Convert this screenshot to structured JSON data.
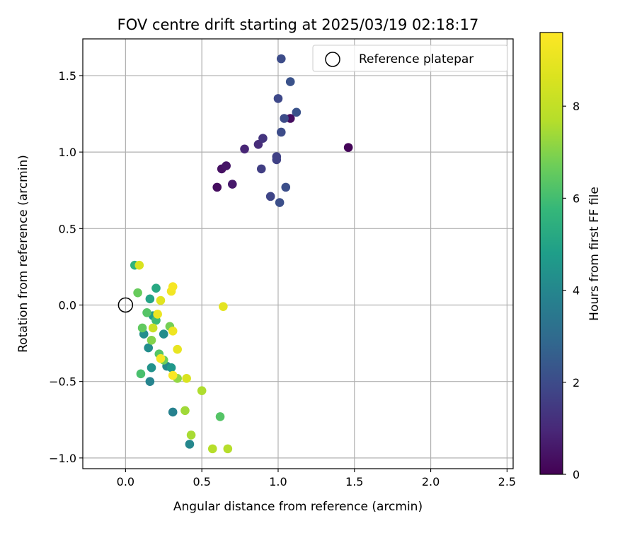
{
  "chart_data": {
    "type": "scatter",
    "title": "FOV centre drift starting at 2025/03/19 02:18:17",
    "xlabel": "Angular distance from reference (arcmin)",
    "ylabel": "Rotation from reference (arcmin)",
    "xlim": [
      -0.28,
      2.54
    ],
    "ylim": [
      -1.07,
      1.74
    ],
    "xticks": [
      0.0,
      0.5,
      1.0,
      1.5,
      2.0,
      2.5
    ],
    "xtick_labels": [
      "0.0",
      "0.5",
      "1.0",
      "1.5",
      "2.0",
      "2.5"
    ],
    "yticks": [
      -1.0,
      -0.5,
      0.0,
      0.5,
      1.0,
      1.5
    ],
    "ytick_labels": [
      "−1.0",
      "−0.5",
      "0.0",
      "0.5",
      "1.0",
      "1.5"
    ],
    "grid": true,
    "colormap": "viridis",
    "colorbar": {
      "label": "Hours from first FF file",
      "range": [
        0,
        9.6
      ],
      "ticks": [
        0,
        2,
        4,
        6,
        8
      ],
      "tick_labels": [
        "0",
        "2",
        "4",
        "6",
        "8"
      ]
    },
    "legend": {
      "position": "top-right",
      "entries": [
        {
          "label": "Reference platepar",
          "marker": "open-circle"
        }
      ]
    },
    "reference_point": {
      "x": 0.0,
      "y": 0.0
    },
    "points": [
      {
        "x": 1.46,
        "y": 1.03,
        "c": 0.1
      },
      {
        "x": 1.08,
        "y": 1.22,
        "c": 0.3
      },
      {
        "x": 0.6,
        "y": 0.77,
        "c": 0.3
      },
      {
        "x": 0.63,
        "y": 0.89,
        "c": 0.4
      },
      {
        "x": 0.66,
        "y": 0.91,
        "c": 0.5
      },
      {
        "x": 0.7,
        "y": 0.79,
        "c": 0.6
      },
      {
        "x": 0.78,
        "y": 1.02,
        "c": 0.9
      },
      {
        "x": 0.87,
        "y": 1.05,
        "c": 1.1
      },
      {
        "x": 0.9,
        "y": 1.09,
        "c": 1.3
      },
      {
        "x": 0.89,
        "y": 0.89,
        "c": 1.6
      },
      {
        "x": 0.95,
        "y": 0.71,
        "c": 1.8
      },
      {
        "x": 0.99,
        "y": 0.97,
        "c": 1.7
      },
      {
        "x": 0.99,
        "y": 0.95,
        "c": 1.7
      },
      {
        "x": 1.0,
        "y": 1.35,
        "c": 1.9
      },
      {
        "x": 1.02,
        "y": 1.61,
        "c": 2.0
      },
      {
        "x": 1.02,
        "y": 1.13,
        "c": 2.0
      },
      {
        "x": 1.04,
        "y": 1.22,
        "c": 2.0
      },
      {
        "x": 1.05,
        "y": 0.77,
        "c": 2.1
      },
      {
        "x": 1.01,
        "y": 0.67,
        "c": 2.1
      },
      {
        "x": 1.08,
        "y": 1.46,
        "c": 2.2
      },
      {
        "x": 1.12,
        "y": 1.26,
        "c": 2.2
      },
      {
        "x": 0.31,
        "y": -0.7,
        "c": 3.8
      },
      {
        "x": 0.42,
        "y": -0.91,
        "c": 4.0
      },
      {
        "x": 0.16,
        "y": -0.5,
        "c": 3.9
      },
      {
        "x": 0.27,
        "y": -0.4,
        "c": 4.0
      },
      {
        "x": 0.25,
        "y": -0.19,
        "c": 4.2
      },
      {
        "x": 0.15,
        "y": -0.28,
        "c": 4.2
      },
      {
        "x": 0.12,
        "y": -0.19,
        "c": 4.3
      },
      {
        "x": 0.17,
        "y": -0.41,
        "c": 4.4
      },
      {
        "x": 0.3,
        "y": -0.41,
        "c": 4.6
      },
      {
        "x": 0.18,
        "y": -0.07,
        "c": 4.7
      },
      {
        "x": 0.16,
        "y": 0.04,
        "c": 5.0
      },
      {
        "x": 0.2,
        "y": 0.11,
        "c": 5.2
      },
      {
        "x": 0.06,
        "y": 0.26,
        "c": 5.6
      },
      {
        "x": 0.2,
        "y": -0.1,
        "c": 5.9
      },
      {
        "x": 0.1,
        "y": -0.45,
        "c": 6.1
      },
      {
        "x": 0.14,
        "y": -0.05,
        "c": 6.3
      },
      {
        "x": 0.22,
        "y": -0.32,
        "c": 6.3
      },
      {
        "x": 0.08,
        "y": 0.08,
        "c": 6.6
      },
      {
        "x": 0.11,
        "y": -0.15,
        "c": 6.5
      },
      {
        "x": 0.62,
        "y": -0.73,
        "c": 6.3
      },
      {
        "x": 0.29,
        "y": -0.14,
        "c": 6.8
      },
      {
        "x": 0.17,
        "y": -0.23,
        "c": 7.0
      },
      {
        "x": 0.25,
        "y": -0.36,
        "c": 6.7
      },
      {
        "x": 0.34,
        "y": -0.48,
        "c": 7.2
      },
      {
        "x": 0.39,
        "y": -0.69,
        "c": 7.4
      },
      {
        "x": 0.43,
        "y": -0.85,
        "c": 7.5
      },
      {
        "x": 0.5,
        "y": -0.56,
        "c": 7.6
      },
      {
        "x": 0.57,
        "y": -0.94,
        "c": 7.7
      },
      {
        "x": 0.67,
        "y": -0.94,
        "c": 7.7
      },
      {
        "x": 0.09,
        "y": 0.26,
        "c": 8.6
      },
      {
        "x": 0.18,
        "y": -0.15,
        "c": 8.2
      },
      {
        "x": 0.4,
        "y": -0.48,
        "c": 8.6
      },
      {
        "x": 0.23,
        "y": 0.03,
        "c": 8.8
      },
      {
        "x": 0.34,
        "y": -0.29,
        "c": 9.0
      },
      {
        "x": 0.21,
        "y": -0.06,
        "c": 9.1
      },
      {
        "x": 0.31,
        "y": -0.17,
        "c": 9.2
      },
      {
        "x": 0.3,
        "y": 0.09,
        "c": 9.3
      },
      {
        "x": 0.31,
        "y": 0.12,
        "c": 9.4
      },
      {
        "x": 0.23,
        "y": -0.35,
        "c": 9.4
      },
      {
        "x": 0.64,
        "y": -0.01,
        "c": 8.9
      },
      {
        "x": 0.31,
        "y": -0.46,
        "c": 9.5
      }
    ]
  }
}
